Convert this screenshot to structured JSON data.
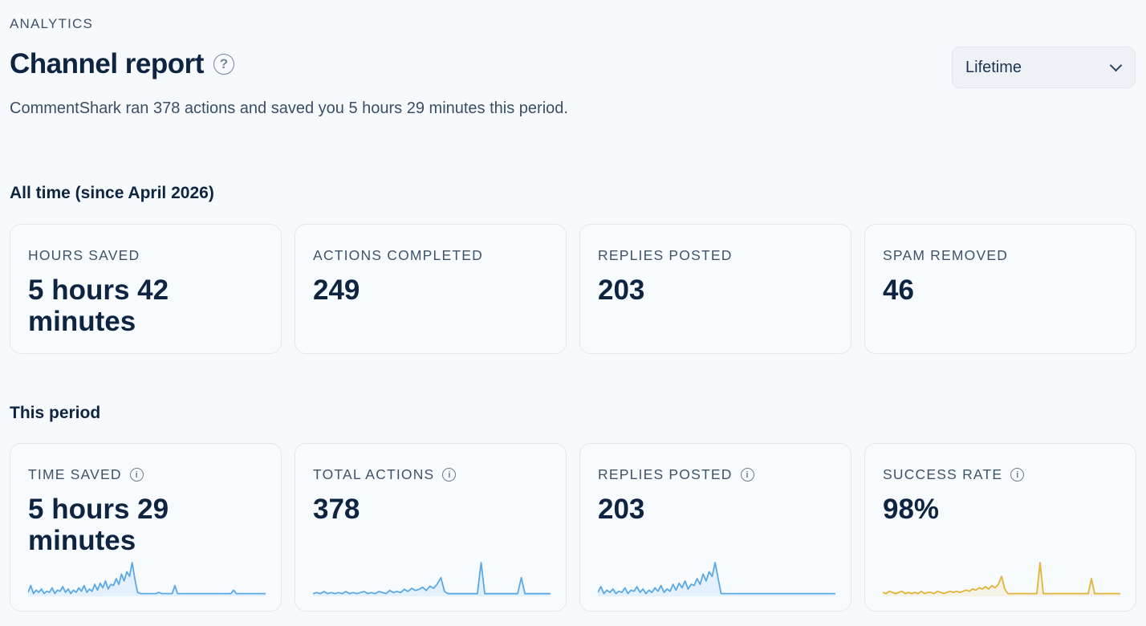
{
  "header": {
    "eyebrow": "ANALYTICS",
    "title": "Channel report",
    "subtitle": "CommentShark ran 378 actions and saved you 5 hours 29 minutes this period.",
    "period_select": {
      "value": "Lifetime"
    }
  },
  "all_time": {
    "heading": "All time (since April 2026)",
    "cards": [
      {
        "label": "HOURS SAVED",
        "value": "5 hours 42 minutes"
      },
      {
        "label": "ACTIONS COMPLETED",
        "value": "249"
      },
      {
        "label": "REPLIES POSTED",
        "value": "203"
      },
      {
        "label": "SPAM REMOVED",
        "value": "46"
      }
    ]
  },
  "this_period": {
    "heading": "This period",
    "cards": [
      {
        "label": "TIME SAVED",
        "value": "5 hours 29 minutes",
        "spark_color": "#5aa8e6",
        "icon": "info-icon"
      },
      {
        "label": "TOTAL ACTIONS",
        "value": "378",
        "spark_color": "#5aa8e6",
        "icon": "info-icon"
      },
      {
        "label": "REPLIES POSTED",
        "value": "203",
        "spark_color": "#5aa8e6",
        "icon": "info-icon"
      },
      {
        "label": "SUCCESS RATE",
        "value": "98%",
        "spark_color": "#e3b23c",
        "icon": "info-icon"
      }
    ]
  },
  "colors": {
    "background": "#f7fafd",
    "text_primary": "#0e2440",
    "text_secondary": "#3f5368",
    "spark_blue": "#5aa8e6",
    "spark_gold": "#e3b23c"
  },
  "sparklines": {
    "time_saved": [
      2,
      8,
      1,
      4,
      2,
      5,
      1,
      3,
      2,
      6,
      1,
      4,
      3,
      7,
      2,
      5,
      1,
      4,
      2,
      6,
      3,
      8,
      2,
      5,
      3,
      9,
      4,
      10,
      6,
      12,
      5,
      9,
      8,
      14,
      9,
      18,
      12,
      20,
      16,
      28,
      14,
      2,
      1,
      1,
      1,
      1,
      1,
      1,
      1,
      2,
      1,
      1,
      1,
      1,
      1,
      8,
      1,
      1,
      1,
      1,
      1,
      1,
      1,
      1,
      1,
      1,
      1,
      1,
      1,
      1,
      1,
      1,
      1,
      1,
      1,
      1,
      1,
      4,
      1,
      1,
      1,
      1,
      1,
      1,
      1,
      1,
      1,
      1,
      1,
      1
    ],
    "total_actions": [
      1,
      2,
      1,
      3,
      1,
      2,
      1,
      2,
      1,
      3,
      1,
      2,
      1,
      2,
      3,
      1,
      2,
      1,
      3,
      2,
      1,
      4,
      2,
      3,
      2,
      5,
      3,
      6,
      4,
      5,
      7,
      4,
      8,
      6,
      10,
      16,
      3,
      1,
      1,
      1,
      1,
      1,
      1,
      1,
      1,
      1,
      30,
      1,
      1,
      1,
      1,
      1,
      1,
      1,
      1,
      1,
      1,
      16,
      1,
      1,
      1,
      1,
      1,
      1,
      1,
      1
    ],
    "replies_posted": [
      2,
      7,
      1,
      4,
      2,
      5,
      1,
      3,
      2,
      6,
      1,
      4,
      3,
      7,
      2,
      5,
      1,
      4,
      2,
      6,
      3,
      8,
      2,
      5,
      3,
      9,
      4,
      10,
      6,
      12,
      5,
      9,
      8,
      14,
      9,
      18,
      12,
      20,
      16,
      28,
      14,
      1,
      1,
      1,
      1,
      1,
      1,
      1,
      1,
      1,
      1,
      1,
      1,
      1,
      1,
      1,
      1,
      1,
      1,
      1,
      1,
      1,
      1,
      1,
      1,
      1,
      1,
      1,
      1,
      1,
      1,
      1,
      1,
      1,
      1,
      1,
      1,
      1,
      1,
      1
    ],
    "success_rate": [
      2,
      1,
      3,
      2,
      1,
      2,
      3,
      1,
      2,
      1,
      2,
      1,
      3,
      1,
      2,
      2,
      1,
      3,
      2,
      1,
      2,
      3,
      2,
      3,
      2,
      3,
      4,
      3,
      5,
      4,
      6,
      5,
      7,
      5,
      8,
      6,
      9,
      16,
      5,
      1,
      1,
      1,
      1,
      1,
      1,
      1,
      1,
      1,
      1,
      28,
      1,
      1,
      1,
      1,
      1,
      1,
      1,
      1,
      1,
      1,
      1,
      1,
      1,
      1,
      1,
      14,
      1,
      1,
      1,
      1,
      1,
      1,
      1,
      1,
      1
    ]
  }
}
